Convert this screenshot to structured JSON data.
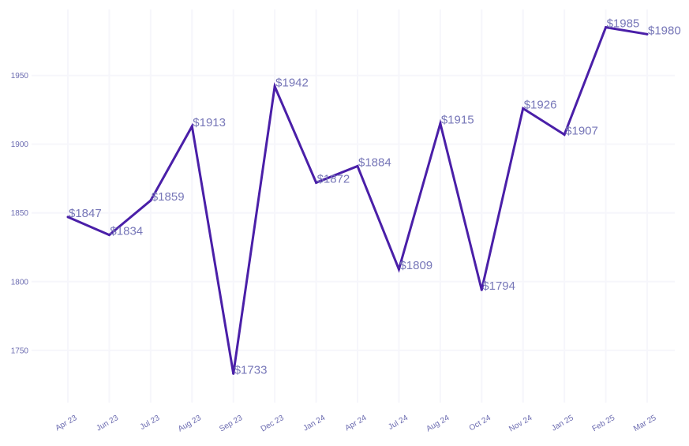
{
  "chart_data": {
    "type": "line",
    "title": "",
    "xlabel": "",
    "ylabel": "",
    "categories": [
      "Apr 23",
      "Jun 23",
      "Jul 23",
      "Aug 23",
      "Sep 23",
      "Dec 23",
      "Jan 24",
      "Apr 24",
      "Jul 24",
      "Aug 24",
      "Oct 24",
      "Nov 24",
      "Jan 25",
      "Feb 25",
      "Mar 25"
    ],
    "series": [
      {
        "values": [
          1847,
          1834,
          1859,
          1913,
          1733,
          1942,
          1872,
          1884,
          1809,
          1915,
          1794,
          1926,
          1907,
          1985,
          1980
        ]
      }
    ],
    "data_labels": [
      "$1847",
      "$1834",
      "$1859",
      "$1913",
      "$1733",
      "$1942",
      "$1872",
      "$1884",
      "$1809",
      "$1915",
      "$1794",
      "$1926",
      "$1907",
      "$1985",
      "$1980"
    ],
    "y_ticks": [
      1750,
      1800,
      1850,
      1900,
      1950
    ],
    "ylim": [
      1712,
      1998
    ],
    "grid": true,
    "legend": "none",
    "line_color": "#4a1fa8"
  }
}
